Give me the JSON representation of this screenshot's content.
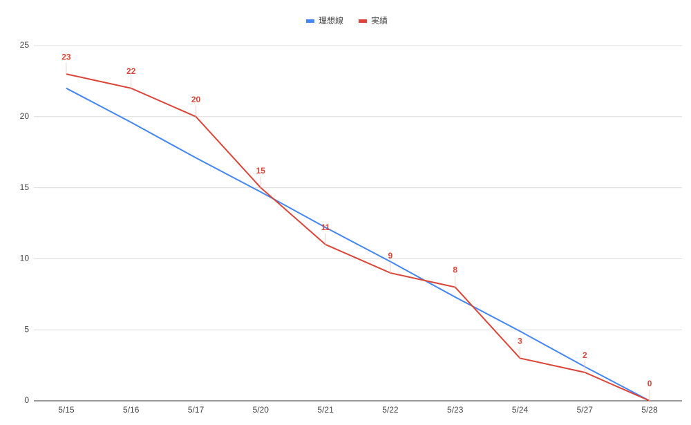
{
  "chart_data": {
    "type": "line",
    "categories": [
      "5/15",
      "5/16",
      "5/17",
      "5/20",
      "5/21",
      "5/22",
      "5/23",
      "5/24",
      "5/27",
      "5/28"
    ],
    "series": [
      {
        "name": "理想線",
        "color": "#4285f4",
        "values": [
          22,
          19.6,
          17.1,
          14.7,
          12.2,
          9.8,
          7.3,
          4.9,
          2.4,
          0
        ]
      },
      {
        "name": "実績",
        "color": "#db4437",
        "values": [
          23,
          22,
          20,
          15,
          11,
          9,
          8,
          3,
          2,
          0
        ],
        "data_labels": true
      }
    ],
    "ylim": [
      0,
      25
    ],
    "yticks": [
      0,
      5,
      10,
      15,
      20,
      25
    ],
    "grid": true,
    "legend": "top"
  }
}
